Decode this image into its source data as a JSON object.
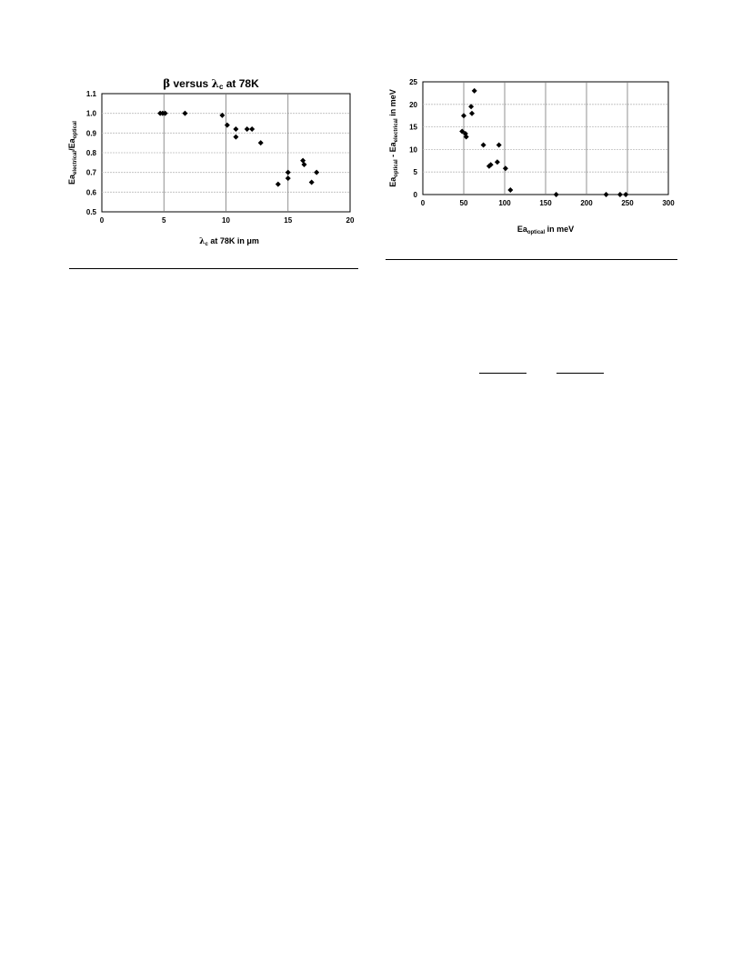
{
  "chart_data": [
    {
      "type": "scatter",
      "title_parts": [
        "β",
        " versus ",
        "λ",
        "c",
        " at 78K"
      ],
      "xlabel_parts": [
        "λ",
        "c",
        " at 78K in μm"
      ],
      "ylabel_parts": [
        "Ea",
        "electrical",
        "/Ea",
        "optical"
      ],
      "xlim": [
        0,
        20
      ],
      "ylim": [
        0.5,
        1.1
      ],
      "x_ticks": [
        "0",
        "5",
        "10",
        "15",
        "20"
      ],
      "y_ticks": [
        "0.5",
        "0.6",
        "0.7",
        "0.8",
        "0.9",
        "1.0",
        "1.1"
      ],
      "grid": true,
      "points": [
        {
          "x": 4.7,
          "y": 1.0
        },
        {
          "x": 4.9,
          "y": 1.0
        },
        {
          "x": 5.1,
          "y": 1.0
        },
        {
          "x": 6.7,
          "y": 1.0
        },
        {
          "x": 9.7,
          "y": 0.99
        },
        {
          "x": 10.1,
          "y": 0.94
        },
        {
          "x": 10.8,
          "y": 0.92
        },
        {
          "x": 10.8,
          "y": 0.88
        },
        {
          "x": 11.7,
          "y": 0.92
        },
        {
          "x": 12.1,
          "y": 0.92
        },
        {
          "x": 12.8,
          "y": 0.85
        },
        {
          "x": 14.2,
          "y": 0.64
        },
        {
          "x": 15.0,
          "y": 0.7
        },
        {
          "x": 15.0,
          "y": 0.67
        },
        {
          "x": 16.2,
          "y": 0.76
        },
        {
          "x": 16.3,
          "y": 0.74
        },
        {
          "x": 16.9,
          "y": 0.65
        },
        {
          "x": 17.3,
          "y": 0.7
        }
      ]
    },
    {
      "type": "scatter",
      "xlabel_parts": [
        "Ea",
        "optical",
        " in meV"
      ],
      "ylabel_parts": [
        "Ea",
        "optical",
        " - Ea",
        "electrical",
        " in meV"
      ],
      "xlim": [
        0,
        300
      ],
      "ylim": [
        0,
        25
      ],
      "x_ticks": [
        "0",
        "50",
        "100",
        "150",
        "200",
        "250",
        "300"
      ],
      "y_ticks": [
        "0",
        "5",
        "10",
        "15",
        "20",
        "25"
      ],
      "grid": true,
      "points": [
        {
          "x": 48,
          "y": 14
        },
        {
          "x": 50,
          "y": 17.5
        },
        {
          "x": 52,
          "y": 13.5
        },
        {
          "x": 53,
          "y": 12.8
        },
        {
          "x": 59,
          "y": 19.5
        },
        {
          "x": 60,
          "y": 18
        },
        {
          "x": 63,
          "y": 23
        },
        {
          "x": 74,
          "y": 11
        },
        {
          "x": 81,
          "y": 6.3
        },
        {
          "x": 83,
          "y": 6.6
        },
        {
          "x": 91,
          "y": 7.2
        },
        {
          "x": 93,
          "y": 11
        },
        {
          "x": 101,
          "y": 5.8
        },
        {
          "x": 107,
          "y": 1
        },
        {
          "x": 163,
          "y": 0
        },
        {
          "x": 224,
          "y": 0
        },
        {
          "x": 241,
          "y": 0
        },
        {
          "x": 248,
          "y": 0
        }
      ]
    }
  ]
}
